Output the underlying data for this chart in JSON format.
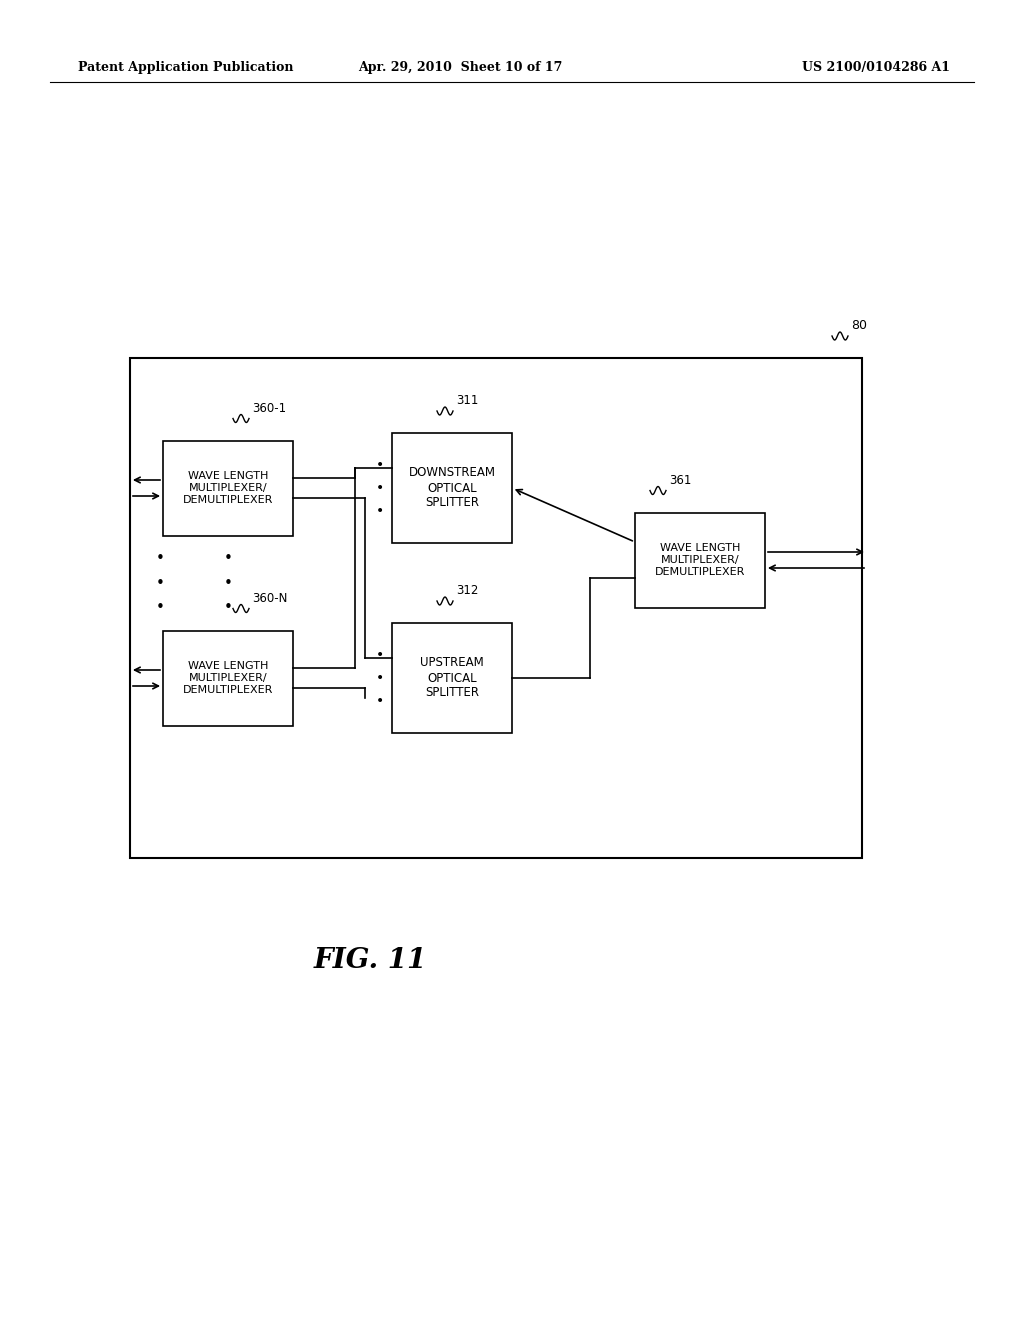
{
  "bg_color": "#ffffff",
  "header_left": "Patent Application Publication",
  "header_mid": "Apr. 29, 2010  Sheet 10 of 17",
  "header_right": "US 2100/0104286 A1",
  "fig_label": "FIG. 11",
  "label_80": "80",
  "label_311": "311",
  "label_312": "312",
  "label_360_1": "360-1",
  "label_360_N": "360-N",
  "label_361": "361"
}
